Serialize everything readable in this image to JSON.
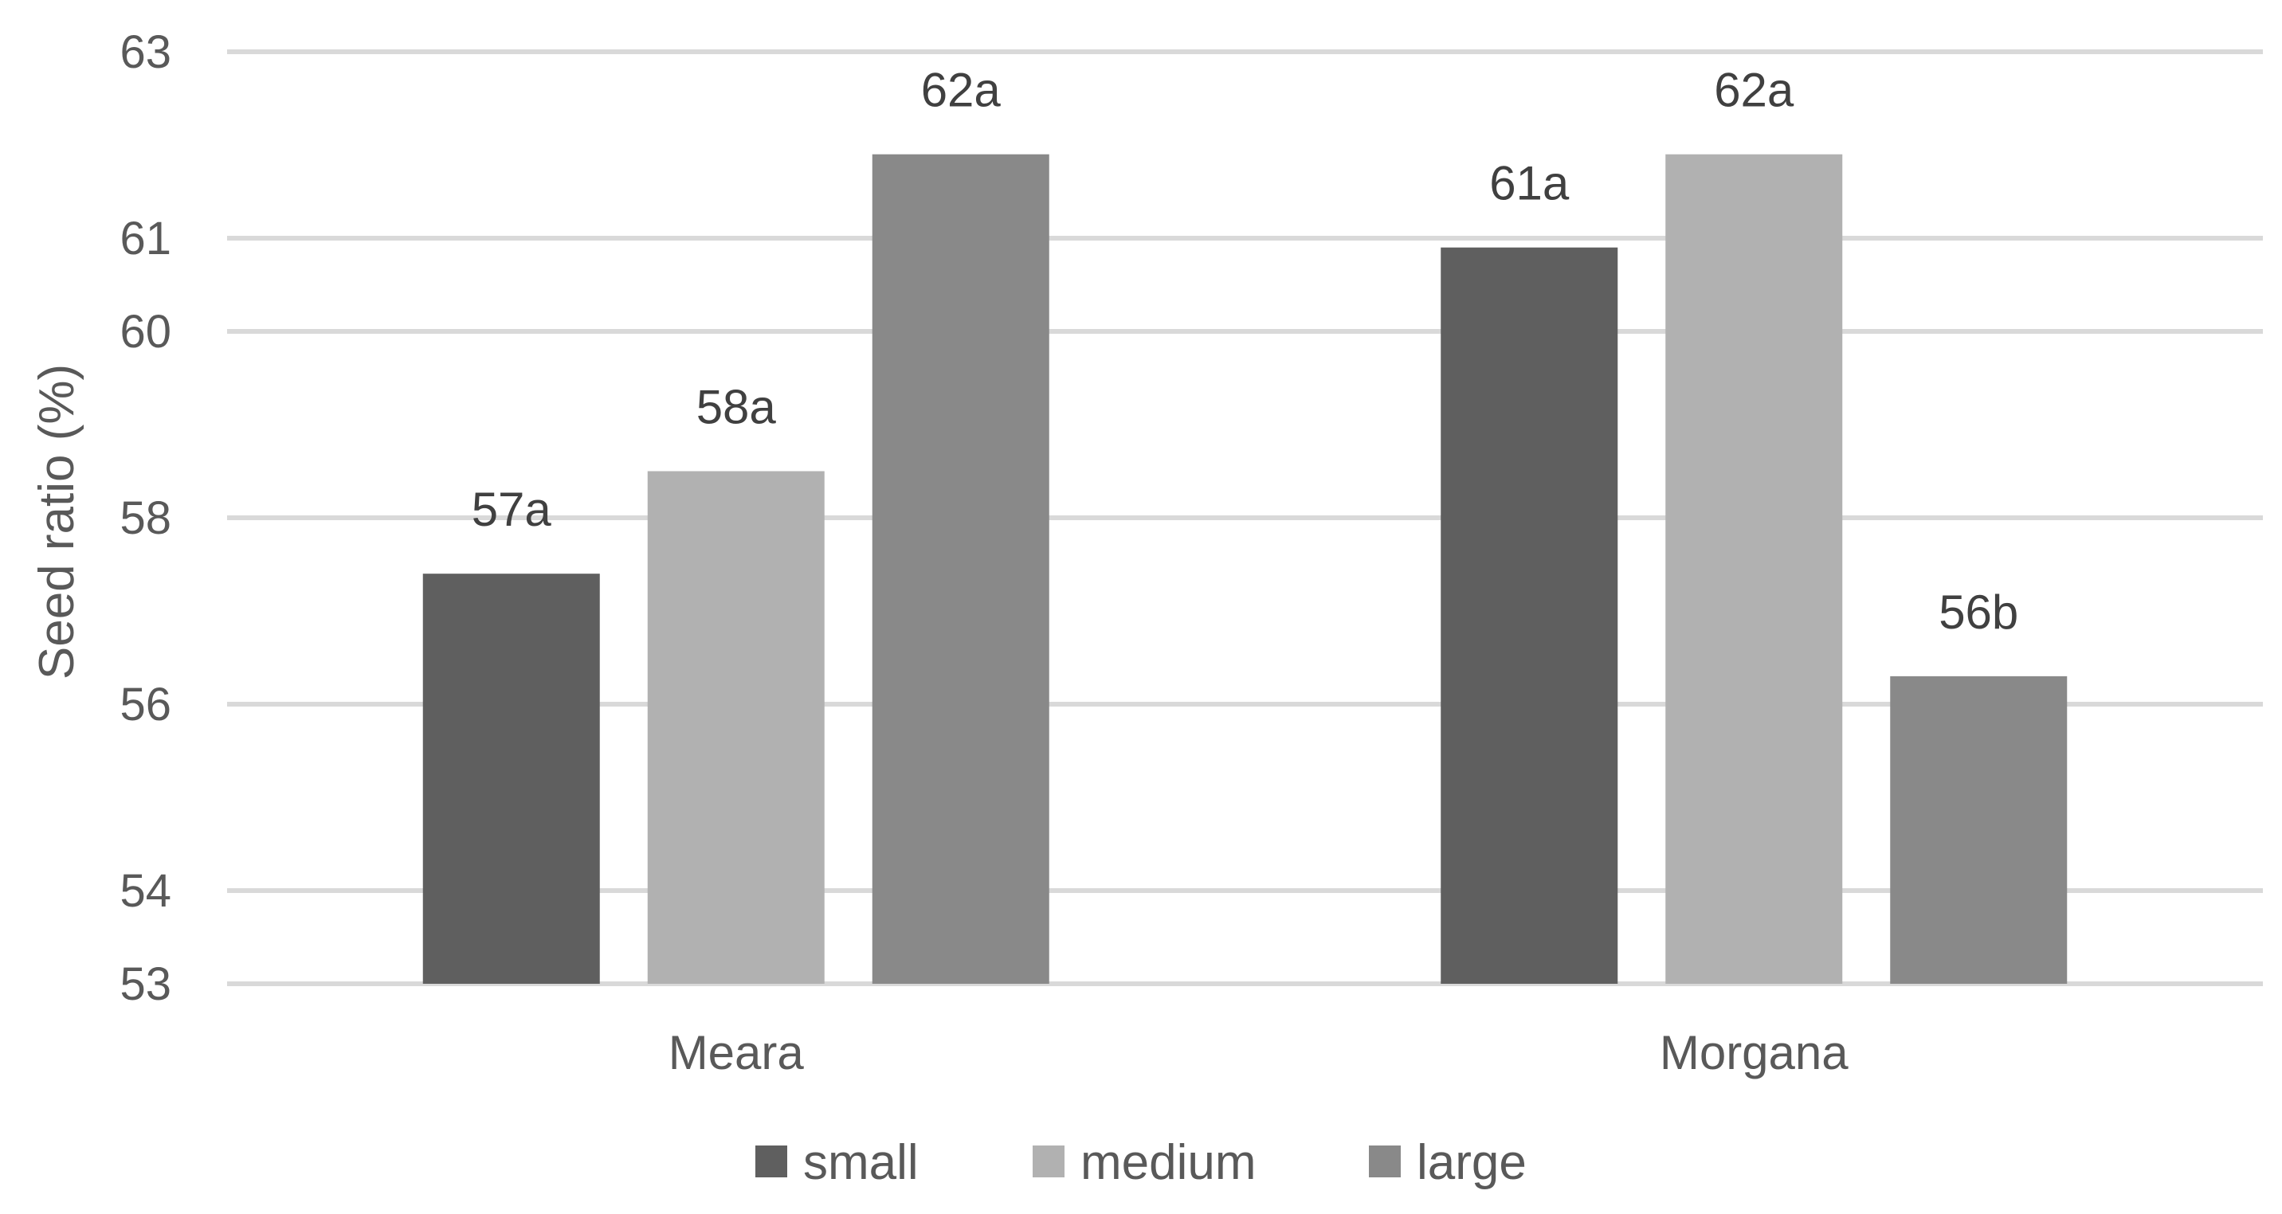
{
  "chart_data": {
    "type": "bar",
    "title": "",
    "xlabel": "",
    "ylabel": "Seed ratio (%)",
    "categories": [
      "Meara",
      "Morgana"
    ],
    "yticks": [
      "63",
      "61",
      "60",
      "58",
      "56",
      "54",
      "53"
    ],
    "ylim": [
      53,
      63
    ],
    "grid": true,
    "legend_position": "bottom",
    "series": [
      {
        "name": "small",
        "color": "#5f5f5f",
        "values": [
          57.4,
          60.9
        ],
        "labels": [
          "57a",
          "61a"
        ]
      },
      {
        "name": "medium",
        "color": "#b1b1b1",
        "values": [
          58.5,
          61.9
        ],
        "labels": [
          "58a",
          "62a"
        ]
      },
      {
        "name": "large",
        "color": "#898989",
        "values": [
          61.9,
          56.3
        ],
        "labels": [
          "62a",
          "56b"
        ]
      }
    ]
  }
}
